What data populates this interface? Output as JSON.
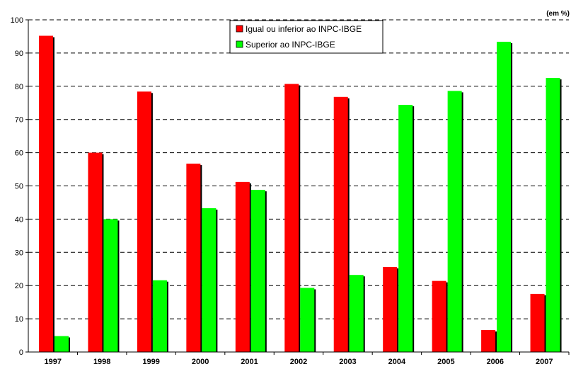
{
  "unit_note": "(em %)",
  "chart_data": {
    "type": "bar",
    "categories": [
      "1997",
      "1998",
      "1999",
      "2000",
      "2001",
      "2002",
      "2003",
      "2004",
      "2005",
      "2006",
      "2007"
    ],
    "series": [
      {
        "name": "Igual ou inferior ao INPC-IBGE",
        "color": "#ff0000",
        "values": [
          95.2,
          60.0,
          78.4,
          56.7,
          51.2,
          80.7,
          76.8,
          25.6,
          21.4,
          6.6,
          17.5
        ]
      },
      {
        "name": "Superior ao INPC-IBGE",
        "color": "#00ff00",
        "values": [
          4.8,
          40.0,
          21.6,
          43.3,
          48.8,
          19.3,
          23.2,
          74.4,
          78.6,
          93.4,
          82.5
        ]
      }
    ],
    "yticks": [
      0,
      10,
      20,
      30,
      40,
      50,
      60,
      70,
      80,
      90,
      100
    ],
    "ylim": [
      0,
      100
    ],
    "grid": true,
    "legend_position": "top-center"
  }
}
